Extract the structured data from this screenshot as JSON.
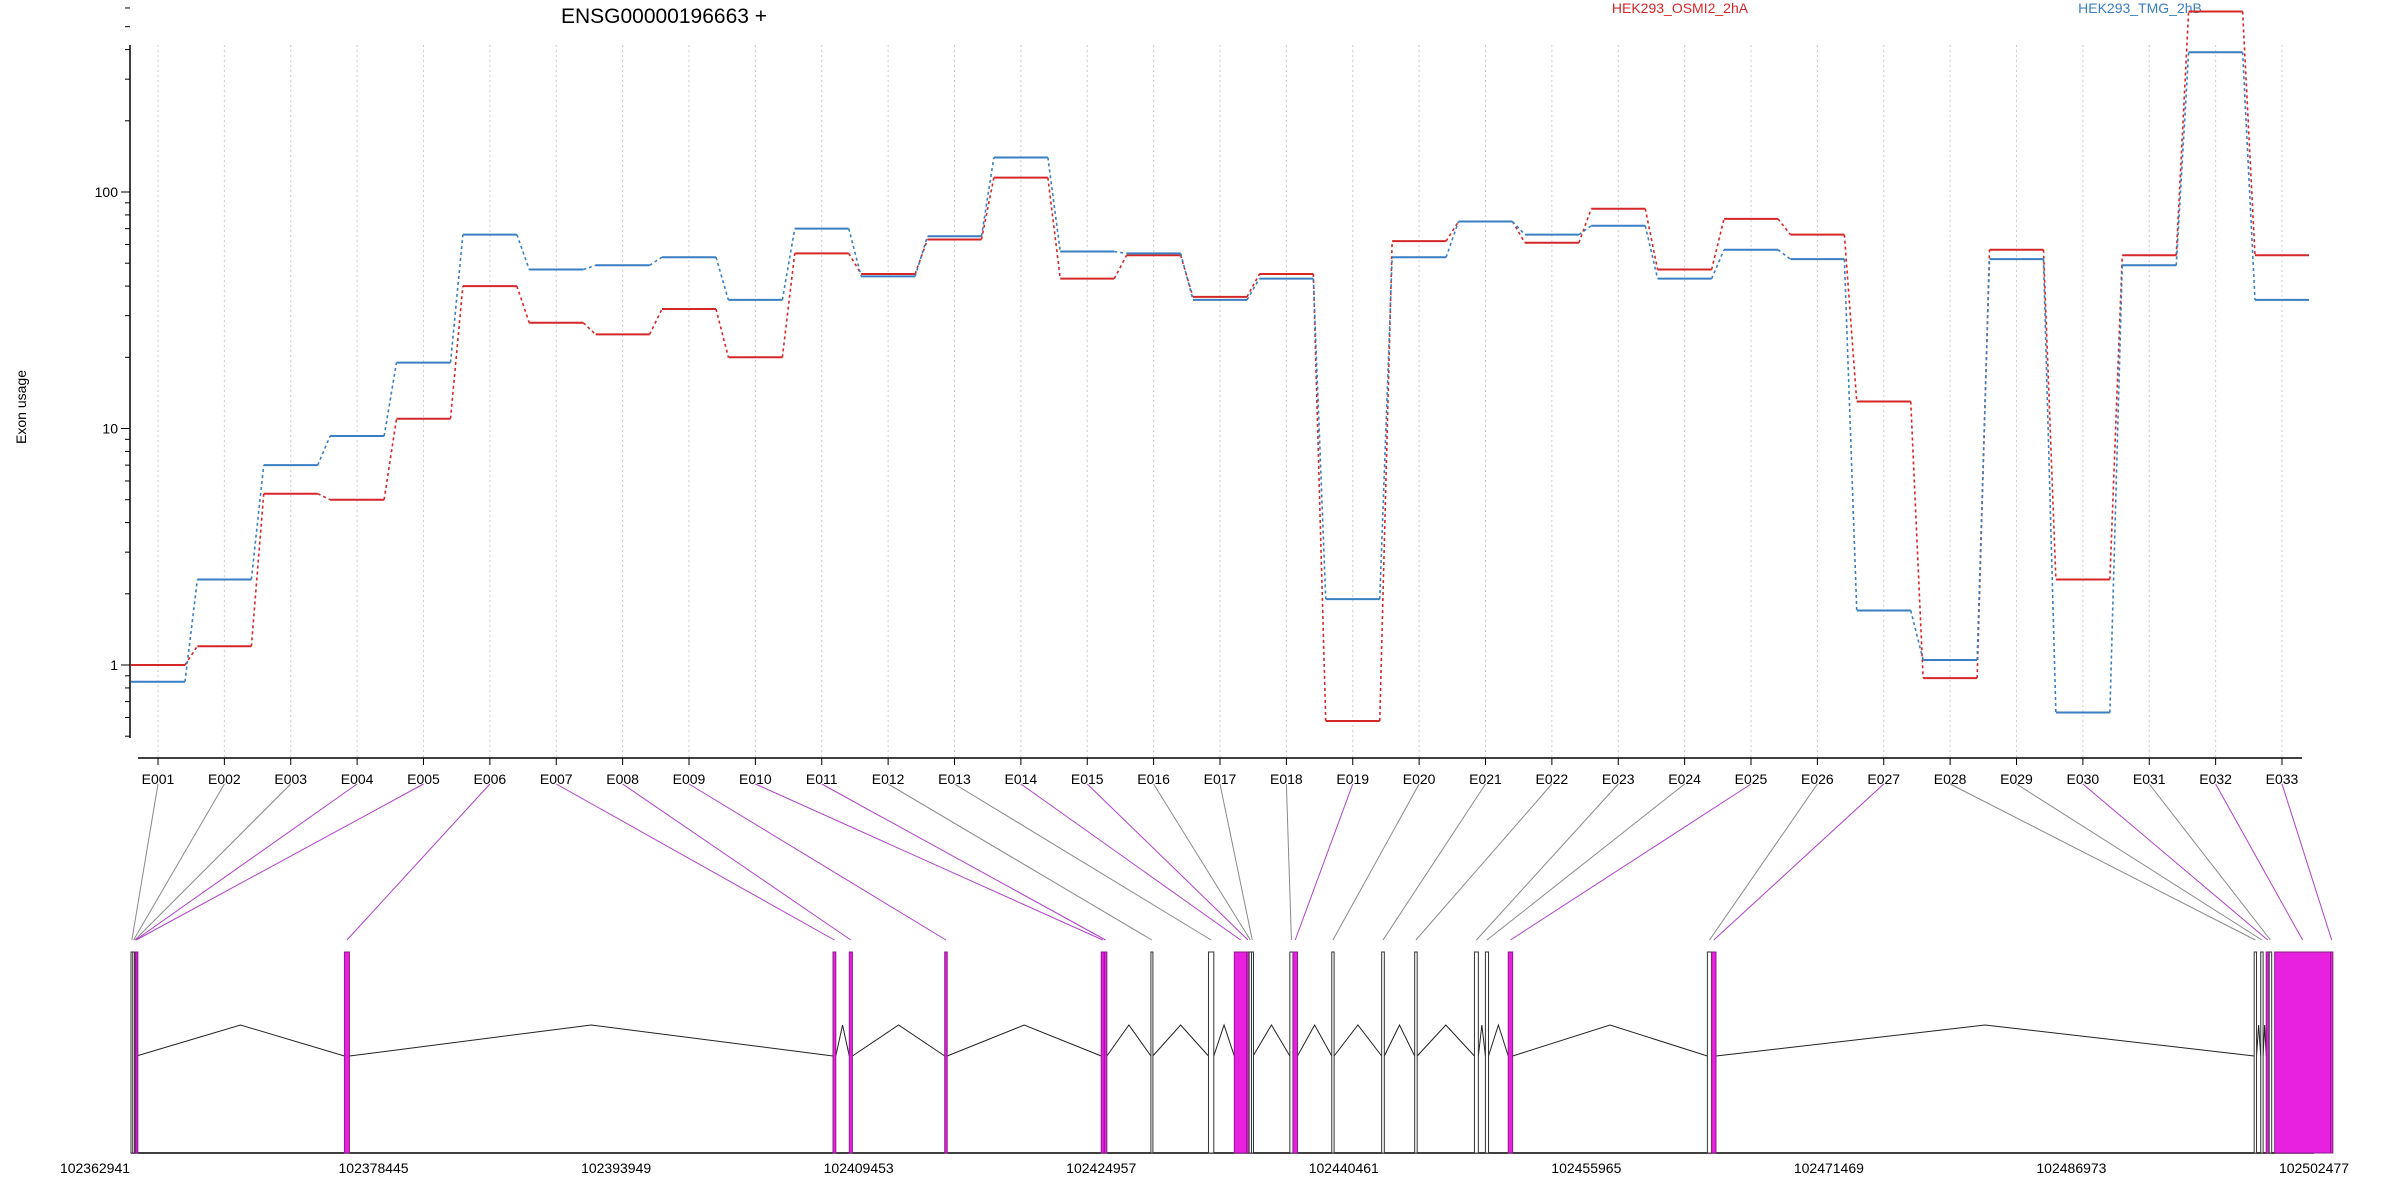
{
  "chart_data": {
    "type": "line",
    "title": "ENSG00000196663 +",
    "xlabel": "",
    "ylabel": "Exon usage",
    "y_scale": "log",
    "ylim": [
      0.45,
      900
    ],
    "y_ticks": [
      "1",
      "10",
      "100"
    ],
    "y_tick_values": [
      1,
      10,
      100
    ],
    "categories": [
      "E001",
      "E002",
      "E003",
      "E004",
      "E005",
      "E006",
      "E007",
      "E008",
      "E009",
      "E010",
      "E011",
      "E012",
      "E013",
      "E014",
      "E015",
      "E016",
      "E017",
      "E018",
      "E019",
      "E020",
      "E021",
      "E022",
      "E023",
      "E024",
      "E025",
      "E026",
      "E027",
      "E028",
      "E029",
      "E030",
      "E031",
      "E032",
      "E033"
    ],
    "grid": "vertical dotted lines at each exon",
    "legend_placement": "top",
    "series": [
      {
        "name": "HEK293_OSMI2_2hA",
        "color": "#d62728",
        "values": [
          1.0,
          1.2,
          5.3,
          5.0,
          11.0,
          40,
          28,
          25,
          32,
          20,
          55,
          45,
          63,
          115,
          43,
          54,
          36,
          45,
          0.58,
          62,
          75,
          61,
          85,
          47,
          77,
          66,
          13,
          0.88,
          57,
          2.3,
          54,
          580,
          54
        ]
      },
      {
        "name": "HEK293_TMG_2hB",
        "color": "#3a7fc1",
        "values": [
          0.85,
          2.3,
          7.0,
          9.3,
          19,
          66,
          47,
          49,
          53,
          35,
          70,
          44,
          65,
          140,
          56,
          55,
          35,
          43,
          1.9,
          53,
          75,
          66,
          72,
          43,
          57,
          52,
          1.7,
          1.05,
          52,
          0.63,
          49,
          390,
          35
        ]
      }
    ],
    "gene_model": {
      "coordinates": [
        "102362941",
        "102378445",
        "102393949",
        "102409453",
        "102424957",
        "102440461",
        "102455965",
        "102471469",
        "102486973",
        "102502477"
      ],
      "coord_values": [
        102362941,
        102378445,
        102393949,
        102409453,
        102424957,
        102440461,
        102455965,
        102471469,
        102486973,
        102502477
      ],
      "exons": [
        {
          "id": "E001",
          "start": 102362941,
          "end": 102363051,
          "sig": false
        },
        {
          "id": "E002",
          "start": 102363051,
          "end": 102363161,
          "sig": false
        },
        {
          "id": "E003",
          "start": 102363161,
          "end": 102363211,
          "sig": false
        },
        {
          "id": "E004",
          "start": 102363211,
          "end": 102363251,
          "sig": true
        },
        {
          "id": "E005",
          "start": 102363251,
          "end": 102363291,
          "sig": true
        },
        {
          "id": "E006",
          "start": 102376583,
          "end": 102376903,
          "sig": true
        },
        {
          "id": "E007",
          "start": 102407813,
          "end": 102407993,
          "sig": true
        },
        {
          "id": "E008",
          "start": 102408853,
          "end": 102409053,
          "sig": true
        },
        {
          "id": "E009",
          "start": 102414953,
          "end": 102415113,
          "sig": true
        },
        {
          "id": "E010",
          "start": 102424957,
          "end": 102425157,
          "sig": true
        },
        {
          "id": "E011",
          "start": 102425157,
          "end": 102425317,
          "sig": true
        },
        {
          "id": "E012",
          "start": 102428133,
          "end": 102428253,
          "sig": false
        },
        {
          "id": "E013",
          "start": 102431813,
          "end": 102432153,
          "sig": false
        },
        {
          "id": "E014",
          "start": 102433463,
          "end": 102434263,
          "sig": true
        },
        {
          "id": "E015",
          "start": 102434263,
          "end": 102434413,
          "sig": true
        },
        {
          "id": "E016",
          "start": 102434413,
          "end": 102434563,
          "sig": false
        },
        {
          "id": "E017",
          "start": 102434563,
          "end": 102434663,
          "sig": false
        },
        {
          "id": "E018",
          "start": 102437013,
          "end": 102437213,
          "sig": false
        },
        {
          "id": "E019",
          "start": 102437213,
          "end": 102437503,
          "sig": true
        },
        {
          "id": "E020",
          "start": 102439693,
          "end": 102439843,
          "sig": false
        },
        {
          "id": "E021",
          "start": 102442883,
          "end": 102443053,
          "sig": false
        },
        {
          "id": "E022",
          "start": 102444993,
          "end": 102445153,
          "sig": false
        },
        {
          "id": "E023",
          "start": 102448813,
          "end": 102449063,
          "sig": false
        },
        {
          "id": "E024",
          "start": 102449513,
          "end": 102449713,
          "sig": false
        },
        {
          "id": "E025",
          "start": 102450973,
          "end": 102451253,
          "sig": true
        },
        {
          "id": "E026",
          "start": 102463703,
          "end": 102463973,
          "sig": false
        },
        {
          "id": "E027",
          "start": 102463973,
          "end": 102464253,
          "sig": true
        },
        {
          "id": "E028",
          "start": 102498653,
          "end": 102498803,
          "sig": false
        },
        {
          "id": "E029",
          "start": 102499073,
          "end": 102499223,
          "sig": false
        },
        {
          "id": "E030",
          "start": 102499423,
          "end": 102499613,
          "sig": true
        },
        {
          "id": "E031",
          "start": 102499613,
          "end": 102499773,
          "sig": false
        },
        {
          "id": "E032",
          "start": 102499963,
          "end": 102503533,
          "sig": true
        },
        {
          "id": "E033",
          "start": 102503533,
          "end": 102503683,
          "sig": true
        }
      ]
    }
  },
  "colors": {
    "significant_exon": "#e820e0",
    "significant_exon_edge": "#8b1a8b",
    "connector_significant": "#b040c8",
    "connector_plain": "#8a8a8a",
    "axis": "#000000",
    "grid": "#cccccc"
  }
}
